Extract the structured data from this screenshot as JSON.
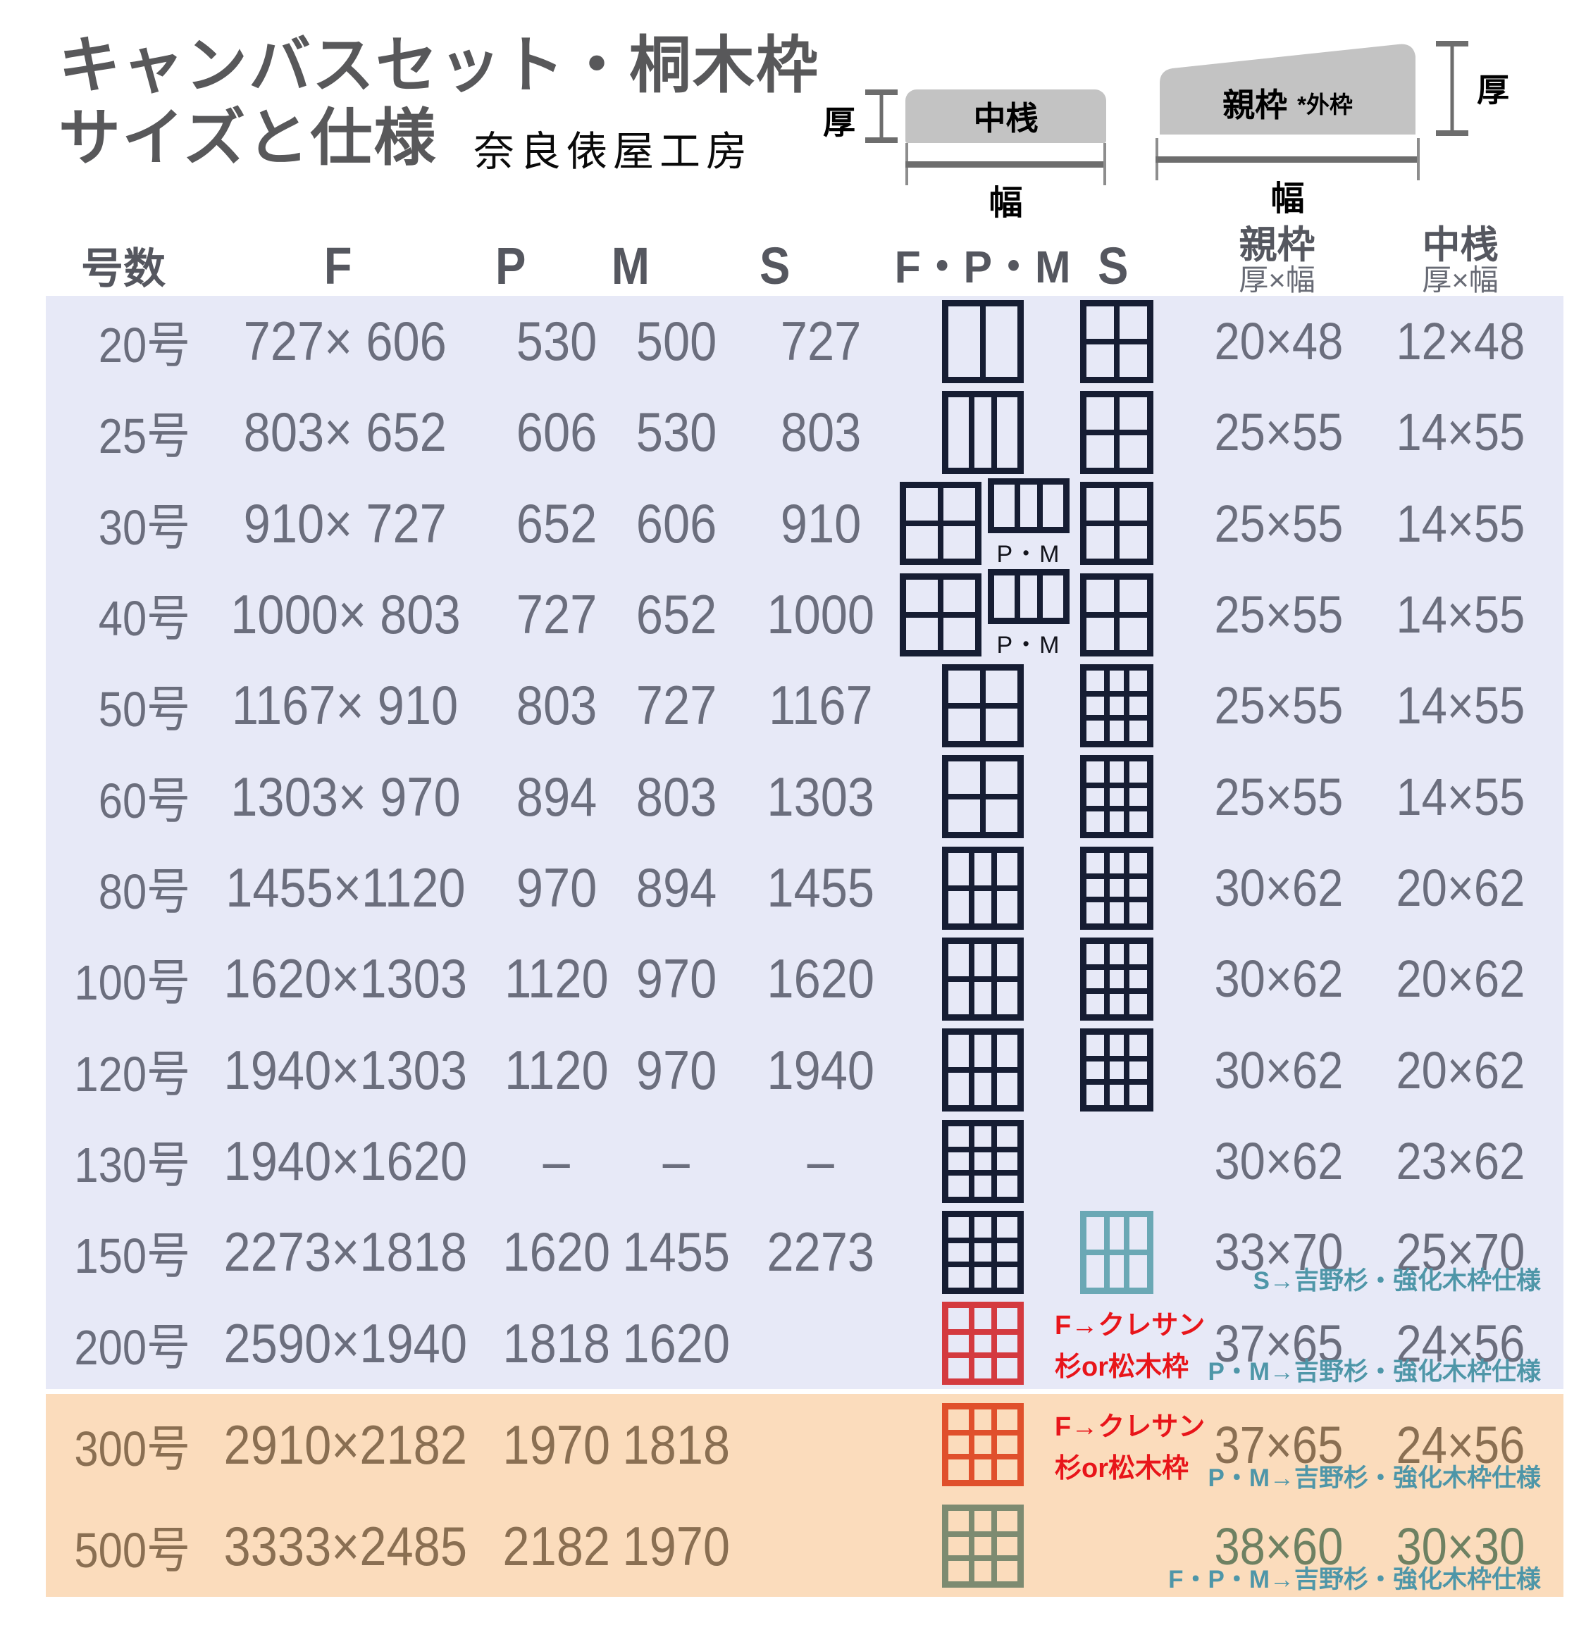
{
  "title": {
    "line1": "キャンバスセット・桐木枠",
    "line2": "サイズと仕様",
    "workshop": "奈良俵屋工房"
  },
  "legend": {
    "nakazan_label": "中桟",
    "oyawaku_label": "親枠",
    "oyawaku_note": "*外枠",
    "thickness_label": "厚",
    "width_label": "幅"
  },
  "header": {
    "size": "号数",
    "f": "F",
    "p": "P",
    "m": "M",
    "s": "S",
    "fpm": "F・P・M",
    "s2": "S",
    "oyawaku": "親枠",
    "nakazan": "中桟",
    "dim": "厚×幅"
  },
  "colors": {
    "band_lavender": "#e7e9f7",
    "band_peach": "#fbdcbc",
    "text_gray": "#6b6e7d",
    "text_brown": "#8a6f52",
    "grid_dark": "#161d33",
    "grid_teal": "#6ba8b5",
    "grid_red": "#d43a3f",
    "grid_orange": "#e0502c",
    "grid_olive": "#7d8b71",
    "note_teal": "#4e96a8",
    "note_red": "#e8151a",
    "value_green": "#6e8162"
  },
  "table": {
    "rows": [
      {
        "size": "20号",
        "f": "727× 606",
        "p": "530",
        "m": "500",
        "s": "727",
        "fpm_grid": {
          "v": 1,
          "h": 0,
          "c": "dark"
        },
        "s_grid": {
          "v": 1,
          "h": 1,
          "c": "dark"
        },
        "oya": "20×48",
        "naka": "12×48",
        "note": ""
      },
      {
        "size": "25号",
        "f": "803× 652",
        "p": "606",
        "m": "530",
        "s": "803",
        "fpm_grid": {
          "v": 2,
          "h": 0,
          "c": "dark"
        },
        "s_grid": {
          "v": 1,
          "h": 1,
          "c": "dark"
        },
        "oya": "25×55",
        "naka": "14×55",
        "note": ""
      },
      {
        "size": "30号",
        "f": "910× 727",
        "p": "652",
        "m": "606",
        "s": "910",
        "fpm_grid": {
          "v": 1,
          "h": 1,
          "c": "dark"
        },
        "pm_grid": {
          "v": 2,
          "h": 0,
          "c": "dark"
        },
        "pm_label": "P・M",
        "s_grid": {
          "v": 1,
          "h": 1,
          "c": "dark"
        },
        "oya": "25×55",
        "naka": "14×55",
        "note": ""
      },
      {
        "size": "40号",
        "f": "1000× 803",
        "p": "727",
        "m": "652",
        "s": "1000",
        "fpm_grid": {
          "v": 1,
          "h": 1,
          "c": "dark"
        },
        "pm_grid": {
          "v": 2,
          "h": 0,
          "c": "dark"
        },
        "pm_label": "P・M",
        "s_grid": {
          "v": 1,
          "h": 1,
          "c": "dark"
        },
        "oya": "25×55",
        "naka": "14×55",
        "note": ""
      },
      {
        "size": "50号",
        "f": "1167× 910",
        "p": "803",
        "m": "727",
        "s": "1167",
        "fpm_grid": {
          "v": 1,
          "h": 1,
          "c": "dark"
        },
        "s_grid": {
          "v": 2,
          "h": 2,
          "c": "dark"
        },
        "oya": "25×55",
        "naka": "14×55",
        "note": ""
      },
      {
        "size": "60号",
        "f": "1303× 970",
        "p": "894",
        "m": "803",
        "s": "1303",
        "fpm_grid": {
          "v": 1,
          "h": 1,
          "c": "dark"
        },
        "s_grid": {
          "v": 2,
          "h": 2,
          "c": "dark"
        },
        "oya": "25×55",
        "naka": "14×55",
        "note": ""
      },
      {
        "size": "80号",
        "f": "1455×1120",
        "p": "970",
        "m": "894",
        "s": "1455",
        "fpm_grid": {
          "v": 2,
          "h": 1,
          "c": "dark"
        },
        "s_grid": {
          "v": 2,
          "h": 2,
          "c": "dark"
        },
        "oya": "30×62",
        "naka": "20×62",
        "note": ""
      },
      {
        "size": "100号",
        "f": "1620×1303",
        "p": "1120",
        "m": "970",
        "s": "1620",
        "fpm_grid": {
          "v": 2,
          "h": 1,
          "c": "dark"
        },
        "s_grid": {
          "v": 2,
          "h": 2,
          "c": "dark"
        },
        "oya": "30×62",
        "naka": "20×62",
        "note": ""
      },
      {
        "size": "120号",
        "f": "1940×1303",
        "p": "1120",
        "m": "970",
        "s": "1940",
        "fpm_grid": {
          "v": 2,
          "h": 1,
          "c": "dark"
        },
        "s_grid": {
          "v": 2,
          "h": 2,
          "c": "dark"
        },
        "oya": "30×62",
        "naka": "20×62",
        "note": ""
      },
      {
        "size": "130号",
        "f": "1940×1620",
        "p": "–",
        "m": "–",
        "s": "–",
        "fpm_grid": {
          "v": 2,
          "h": 2,
          "c": "dark"
        },
        "oya": "30×62",
        "naka": "23×62",
        "note": ""
      },
      {
        "size": "150号",
        "f": "2273×1818",
        "p": "1620",
        "m": "1455",
        "s": "2273",
        "fpm_grid": {
          "v": 2,
          "h": 2,
          "c": "dark"
        },
        "s_grid": {
          "v": 2,
          "h": 1,
          "c": "teal"
        },
        "oya": "33×70",
        "naka": "25×70",
        "note": "S→吉野杉・強化木枠仕様"
      },
      {
        "size": "200号",
        "f": "2590×1940",
        "p": "1818",
        "m": "1620",
        "s": "",
        "fpm_grid": {
          "v": 2,
          "h": 2,
          "c": "red"
        },
        "red_note1": "F→クレサン",
        "red_note2": "杉or松木枠",
        "oya": "37×65",
        "naka": "24×56",
        "note": "P・M→吉野杉・強化木枠仕様"
      },
      {
        "size": "300号",
        "f": "2910×2182",
        "p": "1970",
        "m": "1818",
        "s": "",
        "fpm_grid": {
          "v": 2,
          "h": 2,
          "c": "orange"
        },
        "red_note1": "F→クレサン",
        "red_note2": "杉or松木枠",
        "oya": "37×65",
        "naka": "24×56",
        "note": "P・M→吉野杉・強化木枠仕様"
      },
      {
        "size": "500号",
        "f": "3333×2485",
        "p": "2182",
        "m": "1970",
        "s": "",
        "fpm_grid": {
          "v": 2,
          "h": 2,
          "c": "olive"
        },
        "value_color": "value_green",
        "oya": "38×60",
        "naka": "30×30",
        "note": "F・P・M→吉野杉・強化木枠仕様"
      }
    ]
  }
}
